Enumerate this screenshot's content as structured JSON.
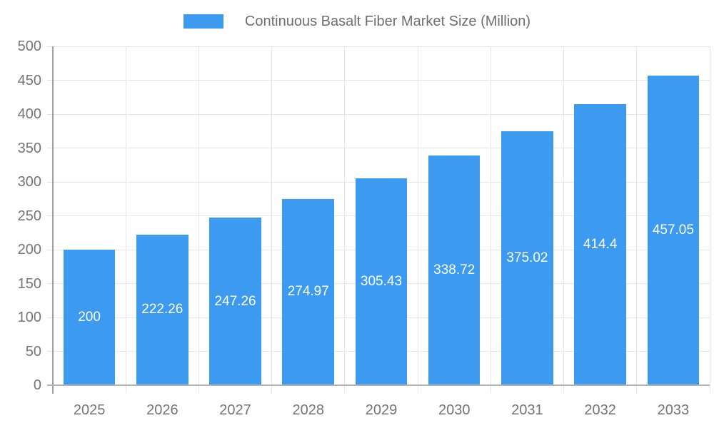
{
  "chart_data": {
    "type": "bar",
    "title": "Continuous Basalt Fiber Market Size (Million)",
    "categories": [
      "2025",
      "2026",
      "2027",
      "2028",
      "2029",
      "2030",
      "2031",
      "2032",
      "2033"
    ],
    "values": [
      200,
      222.26,
      247.26,
      274.97,
      305.43,
      338.72,
      375.02,
      414.4,
      457.05
    ],
    "bar_labels": [
      "200",
      "222.26",
      "247.26",
      "274.97",
      "305.43",
      "338.72",
      "375.02",
      "414.4",
      "457.05"
    ],
    "series_name": "Continuous Basalt Fiber Market Size (Million)",
    "xlabel": "",
    "ylabel": "",
    "ylim": [
      0,
      500
    ],
    "yticks": [
      0,
      50,
      100,
      150,
      200,
      250,
      300,
      350,
      400,
      450,
      500
    ],
    "grid": true,
    "legend_position": "top",
    "bar_color": "#3c9bf0",
    "bar_label_color": "#ffffff"
  },
  "colors": {
    "gridline": "#e6e6e6",
    "y_axis_line": "#9e9e9e",
    "x_axis_line": "#b3b3b3",
    "tick_label": "#757575",
    "legend_text": "#6e6e6e",
    "background": "#ffffff"
  }
}
